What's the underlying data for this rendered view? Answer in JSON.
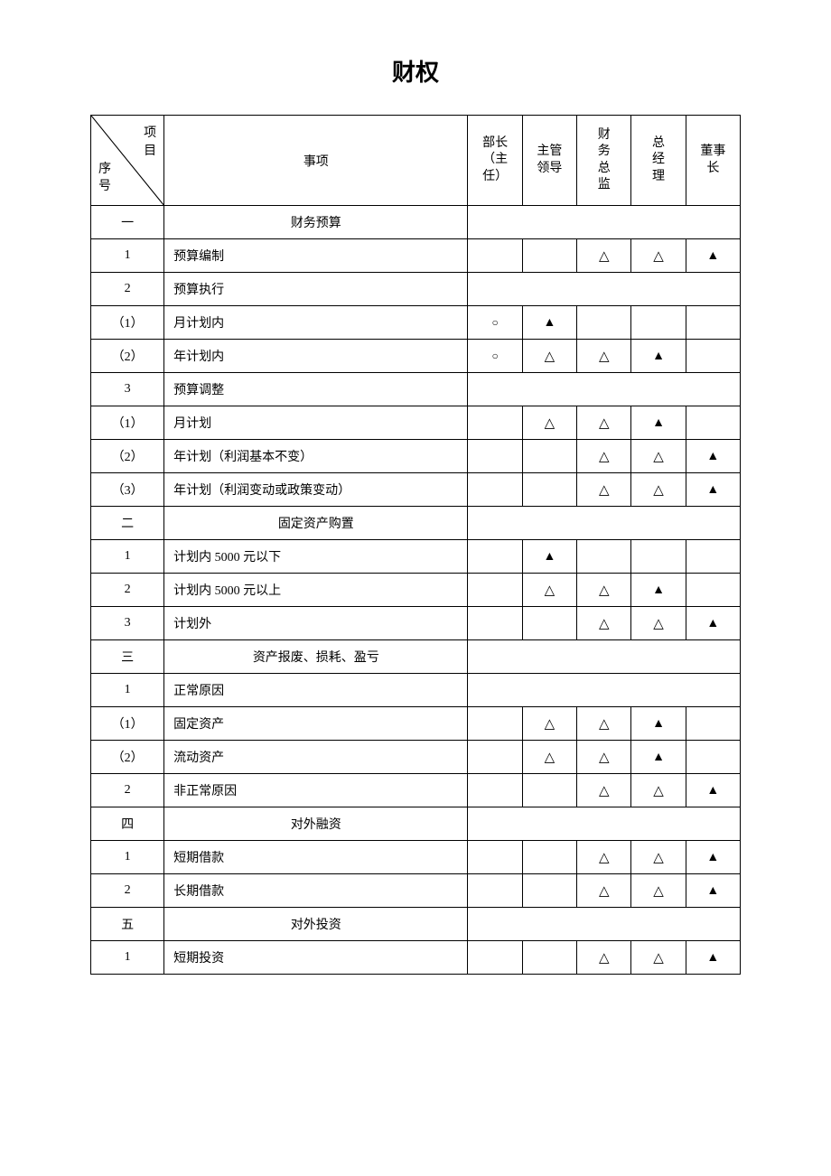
{
  "title": "财权",
  "symbols": {
    "filled": "▲",
    "empty": "△",
    "circle": "○"
  },
  "colors": {
    "border": "#000000",
    "background": "#ffffff",
    "text": "#000000"
  },
  "header": {
    "diag_top": "项目",
    "diag_bottom": "序号",
    "col_item": "事项",
    "col_dept": "部长（主任）",
    "col_sup": "主管领导",
    "col_fin": "财务总监",
    "col_gm": "总经理",
    "col_chair": "董事长"
  },
  "sections": [
    {
      "seq": "一",
      "title": "财务预算",
      "rows": [
        {
          "seq": "1",
          "item": "预算编制",
          "cells": [
            "",
            "",
            "△",
            "△",
            "▲"
          ]
        },
        {
          "seq": "2",
          "item": "预算执行",
          "cells": [
            "",
            "",
            "",
            "",
            ""
          ],
          "empty": true
        },
        {
          "seq": "（1）",
          "item": "月计划内",
          "cells": [
            "○",
            "▲",
            "",
            "",
            ""
          ]
        },
        {
          "seq": "（2）",
          "item": "年计划内",
          "cells": [
            "○",
            "△",
            "△",
            "▲",
            ""
          ]
        },
        {
          "seq": "3",
          "item": "预算调整",
          "cells": [
            "",
            "",
            "",
            "",
            ""
          ],
          "empty": true
        },
        {
          "seq": "（1）",
          "item": "月计划",
          "cells": [
            "",
            "△",
            "△",
            "▲",
            ""
          ]
        },
        {
          "seq": "（2）",
          "item": "年计划（利润基本不变）",
          "cells": [
            "",
            "",
            "△",
            "△",
            "▲"
          ]
        },
        {
          "seq": "（3）",
          "item": "年计划（利润变动或政策变动）",
          "cells": [
            "",
            "",
            "△",
            "△",
            "▲"
          ]
        }
      ]
    },
    {
      "seq": "二",
      "title": "固定资产购置",
      "rows": [
        {
          "seq": "1",
          "item": "计划内 5000 元以下",
          "cells": [
            "",
            "▲",
            "",
            "",
            ""
          ]
        },
        {
          "seq": "2",
          "item": "计划内 5000 元以上",
          "cells": [
            "",
            "△",
            "△",
            "▲",
            ""
          ]
        },
        {
          "seq": "3",
          "item": "计划外",
          "cells": [
            "",
            "",
            "△",
            "△",
            "▲"
          ]
        }
      ]
    },
    {
      "seq": "三",
      "title": "资产报废、损耗、盈亏",
      "rows": [
        {
          "seq": "1",
          "item": "正常原因",
          "cells": [
            "",
            "",
            "",
            "",
            ""
          ],
          "empty": true
        },
        {
          "seq": "（1）",
          "item": "固定资产",
          "cells": [
            "",
            "△",
            "△",
            "▲",
            ""
          ]
        },
        {
          "seq": "（2）",
          "item": "流动资产",
          "cells": [
            "",
            "△",
            "△",
            "▲",
            ""
          ]
        },
        {
          "seq": "2",
          "item": "非正常原因",
          "cells": [
            "",
            "",
            "△",
            "△",
            "▲"
          ]
        }
      ]
    },
    {
      "seq": "四",
      "title": "对外融资",
      "rows": [
        {
          "seq": "1",
          "item": "短期借款",
          "cells": [
            "",
            "",
            "△",
            "△",
            "▲"
          ]
        },
        {
          "seq": "2",
          "item": "长期借款",
          "cells": [
            "",
            "",
            "△",
            "△",
            "▲"
          ]
        }
      ]
    },
    {
      "seq": "五",
      "title": "对外投资",
      "rows": [
        {
          "seq": "1",
          "item": "短期投资",
          "cells": [
            "",
            "",
            "△",
            "△",
            "▲"
          ]
        }
      ]
    }
  ]
}
